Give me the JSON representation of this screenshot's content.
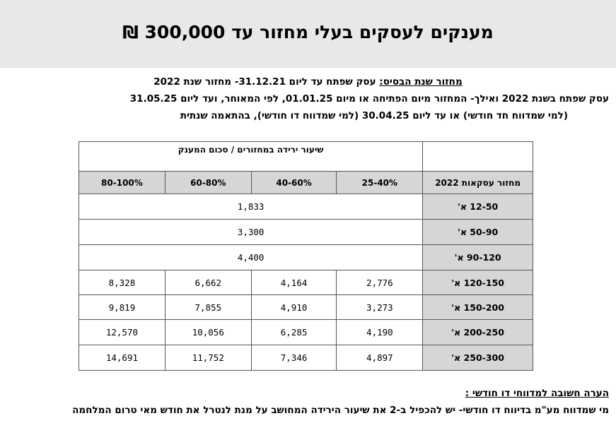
{
  "title": "מענקים לעסקים בעלי מחזור עד 300,000 ₪",
  "basis": {
    "line1_label": "מחזור שנת הבסיס:",
    "line1_text": " עסק שפתח עד ליום 31.12.21- מחזור שנת 2022",
    "line2": "עסק שפתח בשנת 2022 ואילך- המחזור מיום הפתיחה או מיום 01.01.25, לפי המאוחר, ועד ליום 31.05.25",
    "line3": "(למי שמדווח חד חודשי) או עד ליום 30.04.25 (למי שמדווח דו חודשי), בהתאמה שנתית"
  },
  "table": {
    "caption": "שיעור ירידה במחזורים / סכום המענק",
    "row_header": "מחזור עסקאות 2022",
    "columns": [
      "25-40%",
      "40-60%",
      "60-80%",
      "80-100%"
    ],
    "flat_rows": [
      {
        "label": "12-50 א'",
        "value": "1,833"
      },
      {
        "label": "50-90 א'",
        "value": "3,300"
      },
      {
        "label": "90-120 א'",
        "value": "4,400"
      }
    ],
    "rows": [
      {
        "label": "120-150 א'",
        "values": [
          "2,776",
          "4,164",
          "6,662",
          "8,328"
        ]
      },
      {
        "label": "150-200 א'",
        "values": [
          "3,273",
          "4,910",
          "7,855",
          "9,819"
        ]
      },
      {
        "label": "200-250 א'",
        "values": [
          "4,190",
          "6,285",
          "10,056",
          "12,570"
        ]
      },
      {
        "label": "250-300 א'",
        "values": [
          "4,897",
          "7,346",
          "11,752",
          "14,691"
        ]
      }
    ]
  },
  "note": {
    "title": "הערה חשובה למדווחי דו חודשי :",
    "text": "מי שמדווח מע\"מ בדיווח דו חודשי- יש להכפיל ב-2 את שיעור הירידה המחושב על מנת לנטרל את חודש מאי טרום המלחמה"
  }
}
